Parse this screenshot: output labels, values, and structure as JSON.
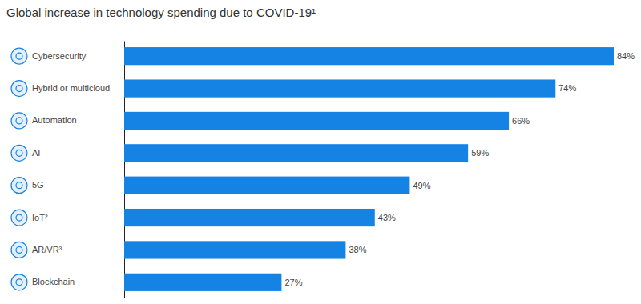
{
  "chart_data": {
    "type": "bar",
    "title": "Global increase in technology spending due to COVID-19¹",
    "categories": [
      "Cybersecurity",
      "Hybrid or multicloud",
      "Automation",
      "AI",
      "5G",
      "IoT²",
      "AR/VR³",
      "Blockchain"
    ],
    "values": [
      84,
      74,
      66,
      59,
      49,
      43,
      38,
      27
    ],
    "value_labels": [
      "84%",
      "74%",
      "66%",
      "59%",
      "49%",
      "43%",
      "38%",
      "27%"
    ],
    "color": "#1583e3",
    "orientation": "horizontal",
    "xlim": [
      0,
      84
    ],
    "data_labels": true,
    "tick_labels": "y"
  }
}
